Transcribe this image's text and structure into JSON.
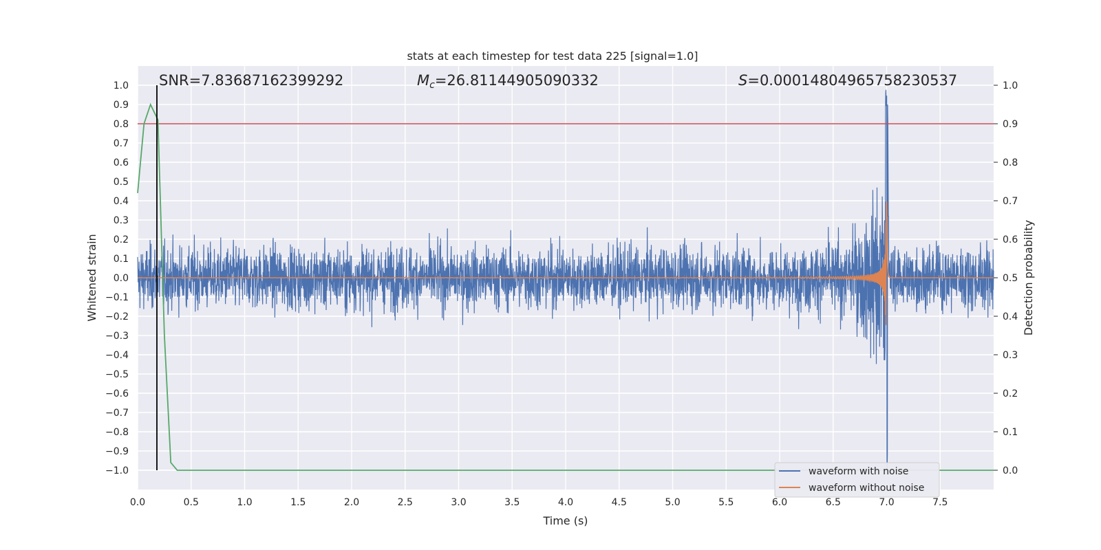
{
  "chart_data": {
    "type": "line",
    "title": "stats at each timestep for test data 225 [signal=1.0]",
    "xlabel": "Time (s)",
    "ylabel": "Whitened strain",
    "y2label": "Detection probability",
    "xlim": [
      0.0,
      8.0
    ],
    "ylim": [
      -1.1,
      1.1
    ],
    "y2lim": [
      -0.05,
      1.05
    ],
    "x_ticks": [
      "0.0",
      "0.5",
      "1.0",
      "1.5",
      "2.0",
      "2.5",
      "3.0",
      "3.5",
      "4.0",
      "4.5",
      "5.0",
      "5.5",
      "6.0",
      "6.5",
      "7.0",
      "7.5"
    ],
    "y_ticks": [
      "1.0",
      "0.9",
      "0.8",
      "0.7",
      "0.6",
      "0.5",
      "0.4",
      "0.3",
      "0.2",
      "0.1",
      "0.0",
      "−0.1",
      "−0.2",
      "−0.3",
      "−0.4",
      "−0.5",
      "−0.6",
      "−0.7",
      "−0.8",
      "−0.9",
      "−1.0"
    ],
    "y2_ticks": [
      "1.0",
      "0.9",
      "0.8",
      "0.7",
      "0.6",
      "0.5",
      "0.4",
      "0.3",
      "0.2",
      "0.1",
      "0.0"
    ],
    "grid": true,
    "legend_position": "lower-right",
    "annotations": {
      "snr": "SNR=7.83687162399292",
      "mc_symbol": "M",
      "mc_sub": "c",
      "mc_value": "=26.81144905090332",
      "s_symbol": "S",
      "s_value": "=0.00014804965758230537"
    },
    "series": [
      {
        "name": "waveform with noise",
        "color": "#4c72b0",
        "description_values": {
          "noise_band": [
            -0.3,
            0.3
          ],
          "peak_time": 7.0,
          "peak_range": [
            -1.0,
            1.0
          ]
        }
      },
      {
        "name": "waveform without noise",
        "color": "#dd8452",
        "description_values": {
          "chirp_end_time": 7.0,
          "peak_range": [
            -1.0,
            1.0
          ]
        }
      }
    ],
    "detection_probability": {
      "color": "#55a868",
      "axis": "right",
      "x": [
        0.0,
        0.06,
        0.12,
        0.19,
        0.25,
        0.31,
        0.37,
        8.0
      ],
      "y": [
        0.72,
        0.9,
        0.95,
        0.91,
        0.35,
        0.02,
        0.0,
        0.0
      ]
    },
    "threshold_line": {
      "color": "#c44e52",
      "axis": "right",
      "y": 0.9
    },
    "vertical_marker": {
      "color": "#000000",
      "x": 0.18,
      "y_range": [
        0.0,
        1.0
      ]
    }
  }
}
